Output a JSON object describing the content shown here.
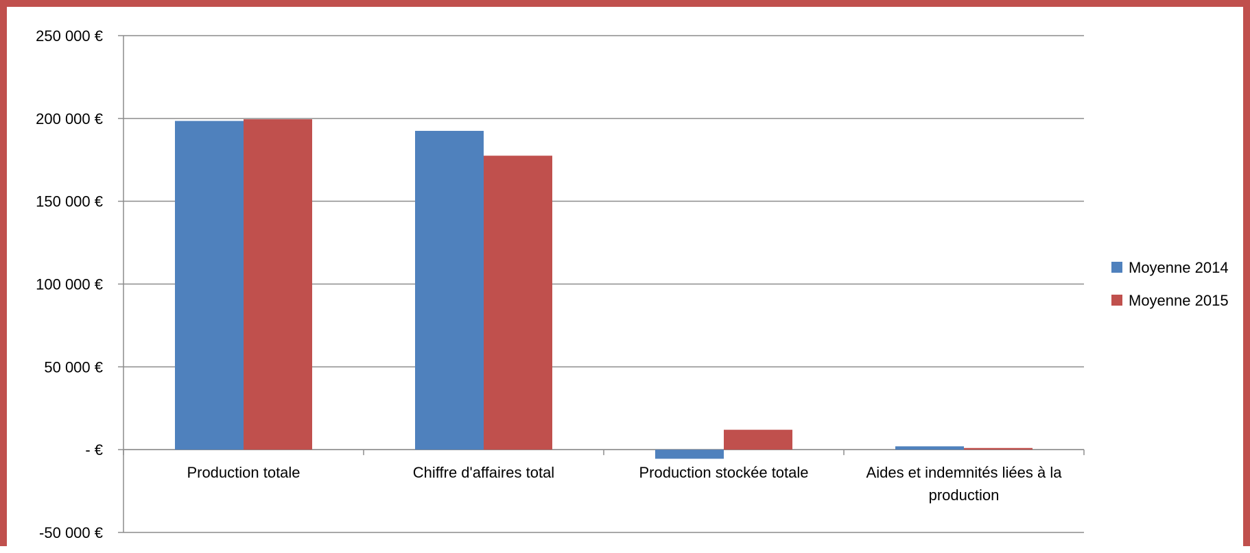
{
  "chart_data": {
    "type": "bar",
    "categories": [
      [
        "Production totale"
      ],
      [
        "Chiffre d'affaires total"
      ],
      [
        "Production stockée totale"
      ],
      [
        "Aides et indemnités liées à la",
        "production"
      ]
    ],
    "series": [
      {
        "name": "Moyenne 2014",
        "color": "#4f81bd",
        "values": [
          198500,
          192500,
          -5500,
          2000
        ]
      },
      {
        "name": "Moyenne 2015",
        "color": "#c0504d",
        "values": [
          199500,
          177500,
          12000,
          1000
        ]
      }
    ],
    "ylim": [
      -50000,
      250000
    ],
    "ytick_values": [
      250000,
      200000,
      150000,
      100000,
      50000,
      0,
      -50000
    ],
    "ytick_labels": [
      "250 000 €",
      "200 000 €",
      "150 000 €",
      "100 000 €",
      "50 000 €",
      "-  €",
      "-50 000 €"
    ],
    "grid": true,
    "legend_position": "right",
    "frame_color": "#c0504d"
  }
}
